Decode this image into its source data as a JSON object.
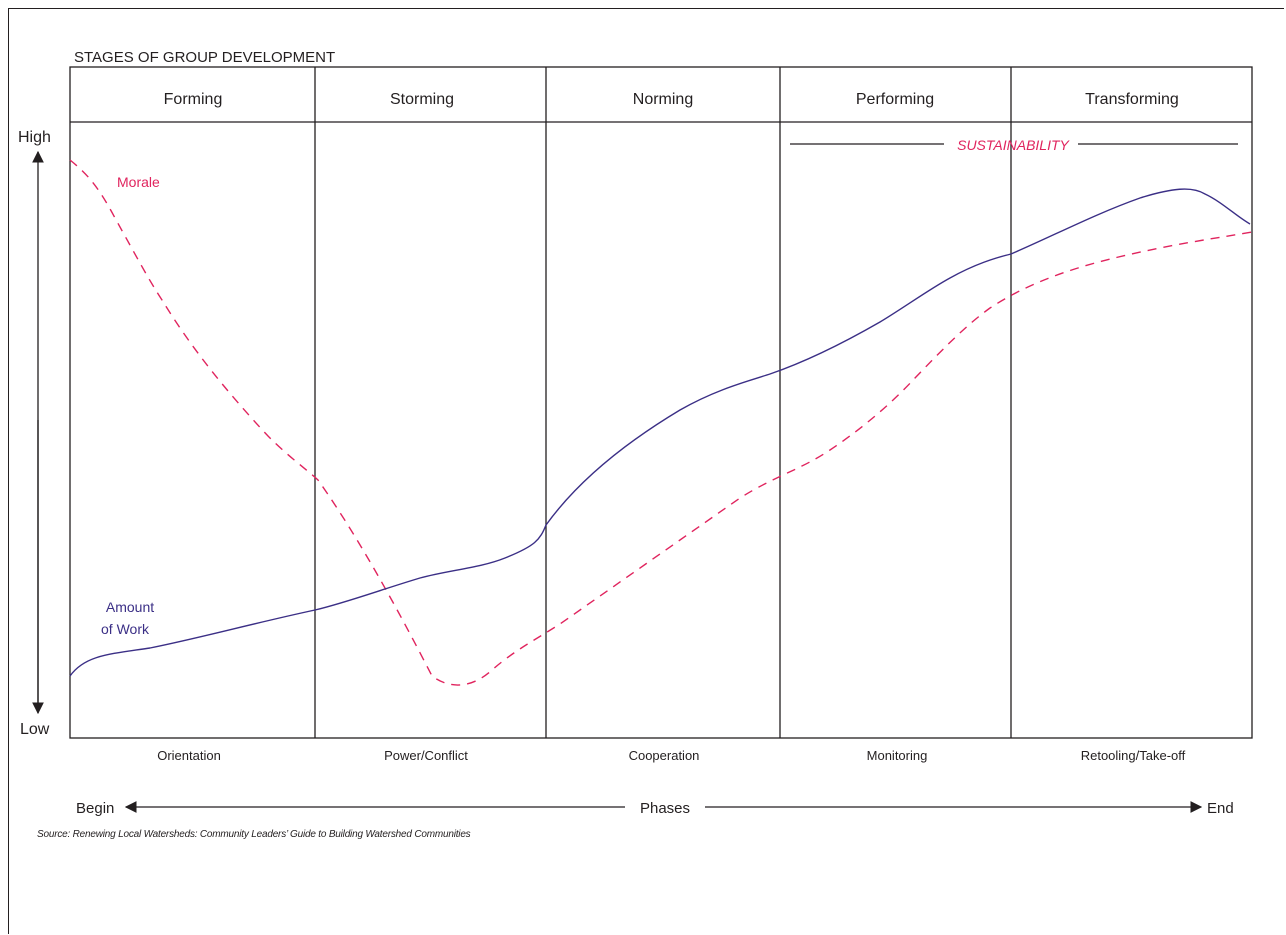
{
  "title": "STAGES OF GROUP DEVELOPMENT",
  "stages": [
    "Forming",
    "Storming",
    "Norming",
    "Performing",
    "Transforming"
  ],
  "phases": [
    "Orientation",
    "Power/Conflict",
    "Cooperation",
    "Monitoring",
    "Retooling/Take-off"
  ],
  "y_axis": {
    "high": "High",
    "low": "Low"
  },
  "x_axis": {
    "begin": "Begin",
    "middle": "Phases",
    "end": "End"
  },
  "sustainability_label": "SUSTAINABILITY",
  "series": {
    "morale": {
      "name": "Morale",
      "color": "#e0245e"
    },
    "work": {
      "name_line1": "Amount",
      "name_line2": "of Work",
      "color": "#3b2f86"
    }
  },
  "source": "Source: Renewing Local Watersheds: Community Leaders’ Guide to Building Watershed Communities"
}
